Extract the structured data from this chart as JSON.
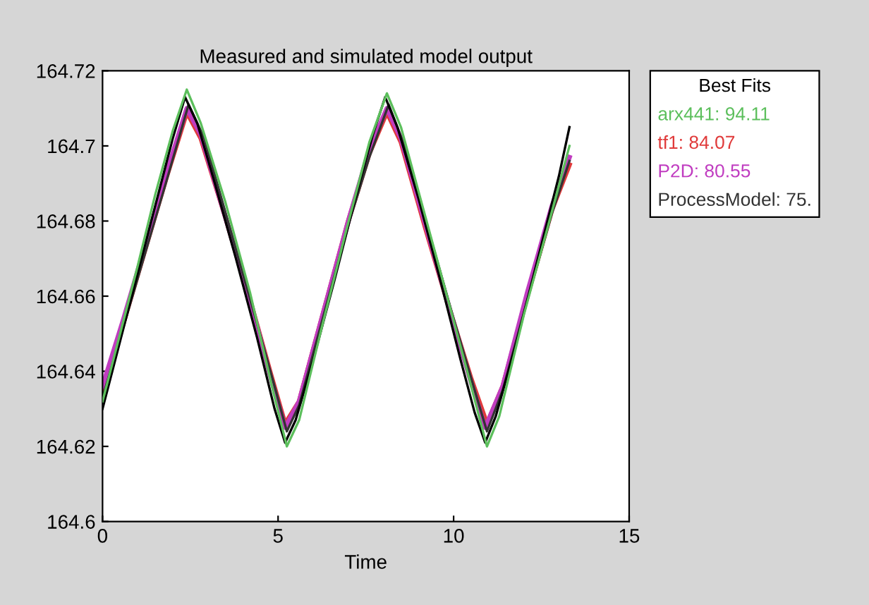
{
  "chart_data": {
    "type": "line",
    "title": "Measured and simulated model output",
    "xlabel": "Time",
    "legend_title": "Best Fits",
    "series": [
      {
        "color": "#000000",
        "x": [
          0,
          0.5,
          1,
          1.5,
          2,
          2.35,
          2.7,
          3.2,
          3.8,
          4.4,
          4.9,
          5.2,
          5.5,
          6,
          6.6,
          7.2,
          7.7,
          8.05,
          8.4,
          9,
          9.6,
          10.2,
          10.6,
          10.9,
          11.2,
          11.8,
          12.4,
          13,
          13.3
        ],
        "values": [
          164.63,
          164.648,
          164.666,
          164.684,
          164.702,
          164.713,
          164.706,
          164.69,
          164.67,
          164.649,
          164.63,
          164.621,
          164.627,
          164.643,
          164.664,
          164.686,
          164.703,
          164.713,
          164.705,
          164.686,
          164.665,
          164.643,
          164.629,
          164.621,
          164.628,
          164.648,
          164.67,
          164.692,
          164.705
        ]
      },
      {
        "name": "arx441: 94.11",
        "color": "#5cbf5c",
        "x": [
          0,
          0.5,
          1,
          1.5,
          2,
          2.4,
          2.8,
          3.5,
          4.2,
          4.8,
          5.25,
          5.6,
          6.2,
          6.9,
          7.6,
          8.1,
          8.5,
          9.2,
          9.9,
          10.5,
          10.95,
          11.3,
          12,
          12.7,
          13.3
        ],
        "values": [
          164.632,
          164.65,
          164.668,
          164.687,
          164.704,
          164.715,
          164.706,
          164.685,
          164.661,
          164.637,
          164.62,
          164.627,
          164.65,
          164.676,
          164.701,
          164.714,
          164.705,
          164.681,
          164.657,
          164.636,
          164.62,
          164.628,
          164.655,
          164.679,
          164.7
        ]
      },
      {
        "name": "tf1: 84.07",
        "color": "#e03a3a",
        "x": [
          0,
          0.6,
          1.2,
          1.8,
          2.4,
          2.8,
          3.5,
          4.2,
          4.8,
          5.2,
          5.6,
          6.3,
          7,
          7.6,
          8.1,
          8.5,
          9.2,
          9.9,
          10.5,
          10.95,
          11.4,
          12.1,
          12.8,
          13.3
        ],
        "values": [
          164.634,
          164.653,
          164.672,
          164.691,
          164.709,
          164.702,
          164.681,
          164.659,
          164.639,
          164.626,
          164.632,
          164.656,
          164.68,
          164.698,
          164.709,
          164.701,
          164.678,
          164.656,
          164.638,
          164.626,
          164.636,
          164.66,
          164.683,
          164.695
        ]
      },
      {
        "name": "P2D: 80.55",
        "color": "#c03cc0",
        "x": [
          0,
          0.6,
          1.2,
          1.8,
          2.4,
          2.8,
          3.5,
          4.2,
          4.8,
          5.2,
          5.6,
          6.3,
          7,
          7.6,
          8.1,
          8.5,
          9.2,
          9.9,
          10.5,
          10.9,
          11.4,
          12.1,
          12.8,
          13.3
        ],
        "values": [
          164.636,
          164.654,
          164.673,
          164.692,
          164.71,
          164.703,
          164.681,
          164.659,
          164.638,
          164.625,
          164.632,
          164.656,
          164.68,
          164.699,
          164.71,
          164.702,
          164.679,
          164.656,
          164.637,
          164.625,
          164.636,
          164.661,
          164.684,
          164.697
        ]
      },
      {
        "name": "ProcessModel: 75.",
        "color": "#333333",
        "x": [
          0,
          0.6,
          1.2,
          1.8,
          2.45,
          2.9,
          3.6,
          4.3,
          4.9,
          5.25,
          5.6,
          6.3,
          7,
          7.6,
          8.15,
          8.6,
          9.3,
          10,
          10.6,
          10.95,
          11.4,
          12.1,
          12.8,
          13.3
        ],
        "values": [
          164.633,
          164.652,
          164.671,
          164.69,
          164.711,
          164.702,
          164.679,
          164.656,
          164.636,
          164.624,
          164.631,
          164.655,
          164.679,
          164.697,
          164.711,
          164.7,
          164.677,
          164.654,
          164.635,
          164.624,
          164.635,
          164.659,
          164.682,
          164.696
        ]
      }
    ],
    "xlim": [
      0,
      15
    ],
    "ylim": [
      164.6,
      164.72
    ],
    "xticks": [
      0,
      5,
      10,
      15
    ],
    "yticks": [
      164.6,
      164.62,
      164.64,
      164.66,
      164.68,
      164.7,
      164.72
    ],
    "legend": "right"
  }
}
